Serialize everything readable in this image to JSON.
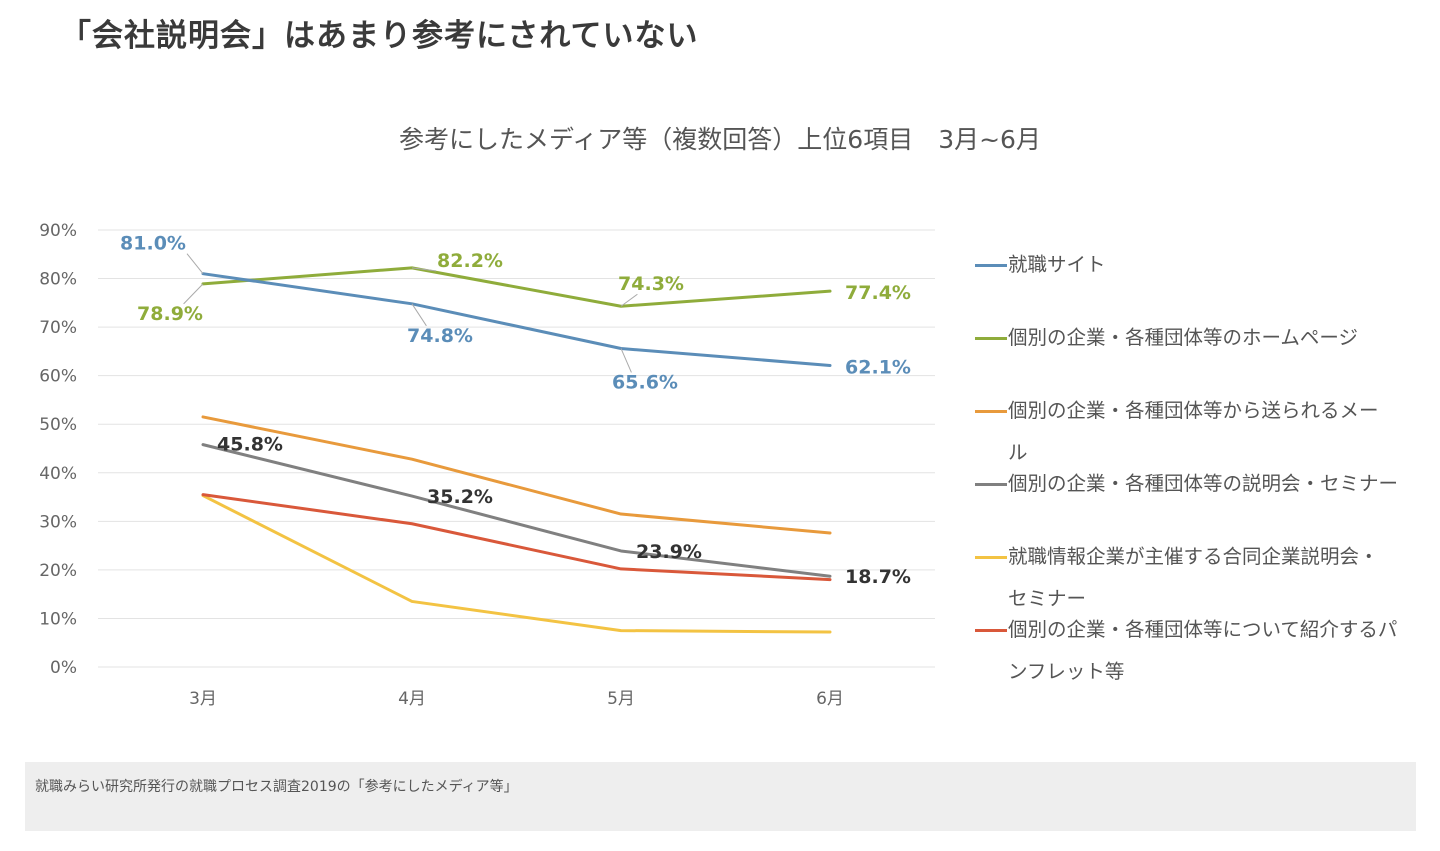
{
  "page": {
    "title": "「会社説明会」はあまり参考にされていない",
    "footer": "就職みらい研究所発行の就職プロセス調査2019の「参考にしたメディア等」"
  },
  "chart_data": {
    "type": "line",
    "title": "参考にしたメディア等（複数回答）上位6項目　3月~6月",
    "categories": [
      "3月",
      "4月",
      "5月",
      "6月"
    ],
    "ylim": [
      0,
      90
    ],
    "y_ticks": [
      0,
      10,
      20,
      30,
      40,
      50,
      60,
      70,
      80,
      90
    ],
    "y_tick_labels": [
      "0%",
      "10%",
      "20%",
      "30%",
      "40%",
      "50%",
      "60%",
      "70%",
      "80%",
      "90%"
    ],
    "grid": true,
    "legend_position": "right",
    "series": [
      {
        "name": "就職サイト",
        "color": "#5b8db8",
        "values": [
          81.0,
          74.8,
          65.6,
          62.1
        ],
        "data_labels": [
          "81.0%",
          "74.8%",
          "65.6%",
          "62.1%"
        ]
      },
      {
        "name": "個別の企業・各種団体等のホームページ",
        "color": "#8fac3b",
        "values": [
          78.9,
          82.2,
          74.3,
          77.4
        ],
        "data_labels": [
          "78.9%",
          "82.2%",
          "74.3%",
          "77.4%"
        ]
      },
      {
        "name": "個別の企業・各種団体等から送られるメール",
        "color": "#e89a3c",
        "values": [
          51.5,
          42.8,
          31.5,
          27.6
        ],
        "data_labels": []
      },
      {
        "name": "個別の企業・各種団体等の説明会・セミナー",
        "color": "#808080",
        "values": [
          45.8,
          35.2,
          23.9,
          18.7
        ],
        "data_labels": [
          "45.8%",
          "35.2%",
          "23.9%",
          "18.7%"
        ]
      },
      {
        "name": "就職情報企業が主催する合同企業説明会・セミナー",
        "color": "#f3c343",
        "values": [
          35.3,
          13.5,
          7.5,
          7.2
        ],
        "data_labels": []
      },
      {
        "name": "個別の企業・各種団体等について紹介するパンフレット等",
        "color": "#d9583a",
        "values": [
          35.5,
          29.5,
          20.2,
          18.0
        ],
        "data_labels": []
      }
    ]
  }
}
